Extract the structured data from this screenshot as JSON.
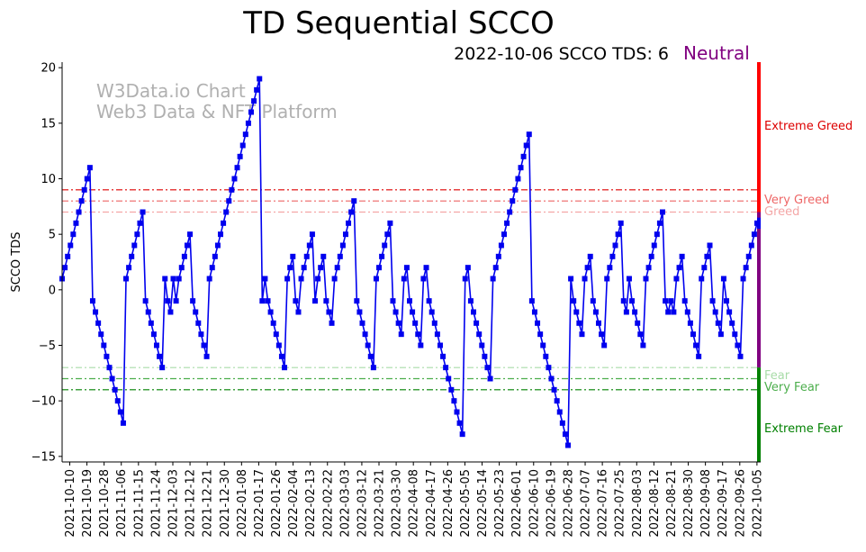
{
  "chart_data": {
    "type": "line",
    "title": "TD Sequential SCCO",
    "subtitle": "2022-10-06 SCCO TDS: 6",
    "status_label": "Neutral",
    "ylabel": "SCCO TDS",
    "xlabel": "",
    "ylim": [
      -15.5,
      20.5
    ],
    "y_ticks": [
      -15,
      -10,
      -5,
      0,
      5,
      10,
      15,
      20
    ],
    "x_start": "2021-10-06",
    "x_end": "2022-10-06",
    "x_tick_labels": [
      "2021-10-10",
      "2021-10-19",
      "2021-10-28",
      "2021-11-06",
      "2021-11-15",
      "2021-11-24",
      "2021-12-03",
      "2021-12-12",
      "2021-12-21",
      "2021-12-30",
      "2022-01-08",
      "2022-01-17",
      "2022-01-26",
      "2022-02-04",
      "2022-02-13",
      "2022-02-22",
      "2022-03-03",
      "2022-03-12",
      "2022-03-21",
      "2022-03-30",
      "2022-04-08",
      "2022-04-17",
      "2022-04-26",
      "2022-05-05",
      "2022-05-14",
      "2022-05-23",
      "2022-06-01",
      "2022-06-10",
      "2022-06-19",
      "2022-06-28",
      "2022-07-07",
      "2022-07-16",
      "2022-07-25",
      "2022-08-03",
      "2022-08-12",
      "2022-08-21",
      "2022-08-30",
      "2022-09-08",
      "2022-09-17",
      "2022-09-26",
      "2022-10-05"
    ],
    "watermark": [
      "W3Data.io Chart",
      "Web3 Data & NFT Platform"
    ],
    "line_color": "#0000ee",
    "thresholds": [
      {
        "label": "Extreme Greed",
        "value": 9,
        "color": "#dd0000"
      },
      {
        "label": "Very Greed",
        "value": 8,
        "color": "#ee6666"
      },
      {
        "label": "Greed",
        "value": 7,
        "color": "#f4a6a6"
      },
      {
        "label": "Fear",
        "value": -7,
        "color": "#a8dca8"
      },
      {
        "label": "Very Fear",
        "value": -8,
        "color": "#4cae4c"
      },
      {
        "label": "Extreme Fear",
        "value": -9,
        "color": "#008000"
      }
    ],
    "side_bar_colors": {
      "greed": "#ff0000",
      "neutral": "#800080",
      "fear": "#008000",
      "current": "#0000ee"
    },
    "series": [
      {
        "values": [
          1,
          2,
          3,
          4,
          5,
          6,
          7,
          8,
          9,
          10,
          11,
          -1,
          -2,
          -3,
          -4,
          -5,
          -6,
          -7,
          -8,
          -9,
          -10,
          -11,
          -12,
          1,
          2,
          3,
          4,
          5,
          6,
          7,
          -1,
          -2,
          -3,
          -4,
          -5,
          -6,
          -7,
          1,
          -1,
          -2,
          1,
          -1,
          1,
          2,
          3,
          4,
          5,
          -1,
          -2,
          -3,
          -4,
          -5,
          -6,
          1,
          2,
          3,
          4,
          5,
          6,
          7,
          8,
          9,
          10,
          11,
          12,
          13,
          14,
          15,
          16,
          17,
          18,
          19,
          -1,
          1,
          -1,
          -2,
          -3,
          -4,
          -5,
          -6,
          -7,
          1,
          2,
          3,
          -1,
          -2,
          1,
          2,
          3,
          4,
          5,
          -1,
          1,
          2,
          3,
          -1,
          -2,
          -3,
          1,
          2,
          3,
          4,
          5,
          6,
          7,
          8,
          -1,
          -2,
          -3,
          -4,
          -5,
          -6,
          -7,
          1,
          2,
          3,
          4,
          5,
          6,
          -1,
          -2,
          -3,
          -4,
          1,
          2,
          -1,
          -2,
          -3,
          -4,
          -5,
          1,
          2,
          -1,
          -2,
          -3,
          -4,
          -5,
          -6,
          -7,
          -8,
          -9,
          -10,
          -11,
          -12,
          -13,
          1,
          2,
          -1,
          -2,
          -3,
          -4,
          -5,
          -6,
          -7,
          -8,
          1,
          2,
          3,
          4,
          5,
          6,
          7,
          8,
          9,
          10,
          11,
          12,
          13,
          14,
          -1,
          -2,
          -3,
          -4,
          -5,
          -6,
          -7,
          -8,
          -9,
          -10,
          -11,
          -12,
          -13,
          -14,
          1,
          -1,
          -2,
          -3,
          -4,
          1,
          2,
          3,
          -1,
          -2,
          -3,
          -4,
          -5,
          1,
          2,
          3,
          4,
          5,
          6,
          -1,
          -2,
          1,
          -1,
          -2,
          -3,
          -4,
          -5,
          1,
          2,
          3,
          4,
          5,
          6,
          7,
          -1,
          -2,
          -1,
          -2,
          1,
          2,
          3,
          -1,
          -2,
          -3,
          -4,
          -5,
          -6,
          1,
          2,
          3,
          4,
          -1,
          -2,
          -3,
          -4,
          1,
          -1,
          -2,
          -3,
          -4,
          -5,
          -6,
          1,
          2,
          3,
          4,
          5,
          6
        ]
      }
    ]
  }
}
